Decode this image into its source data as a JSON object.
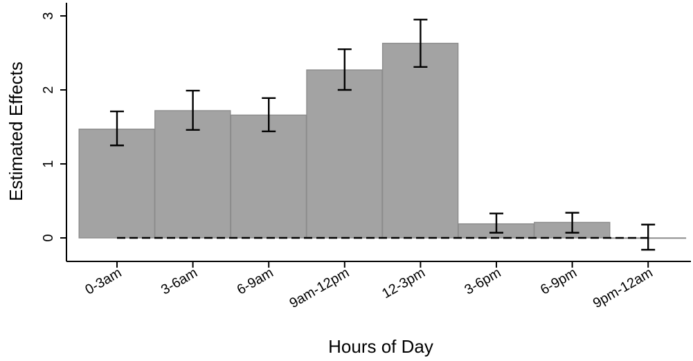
{
  "chart_data": {
    "type": "bar",
    "title": "",
    "xlabel": "Hours of Day",
    "ylabel": "Estimated Effects",
    "categories": [
      "0-3am",
      "3-6am",
      "6-9am",
      "9am-12pm",
      "12-3pm",
      "3-6pm",
      "6-9pm",
      "9pm-12am"
    ],
    "series": [
      {
        "values": [
          1.47,
          1.72,
          1.66,
          2.27,
          2.63,
          0.19,
          0.21,
          0.0
        ],
        "ci_lower": [
          1.25,
          1.46,
          1.44,
          2.0,
          2.31,
          0.07,
          0.07,
          -0.16
        ],
        "ci_upper": [
          1.71,
          1.99,
          1.89,
          2.55,
          2.95,
          0.33,
          0.34,
          0.18
        ]
      }
    ],
    "ylim": [
      -0.3,
      3.2
    ],
    "yticks": [
      0,
      1,
      2,
      3
    ],
    "reference_line": 0,
    "grid": false,
    "legend": "none",
    "colors": {
      "bar_fill": "#a3a3a3",
      "bar_edge": "#8c8c8c",
      "error_bar": "#000000",
      "reference_line": "#000000"
    }
  }
}
